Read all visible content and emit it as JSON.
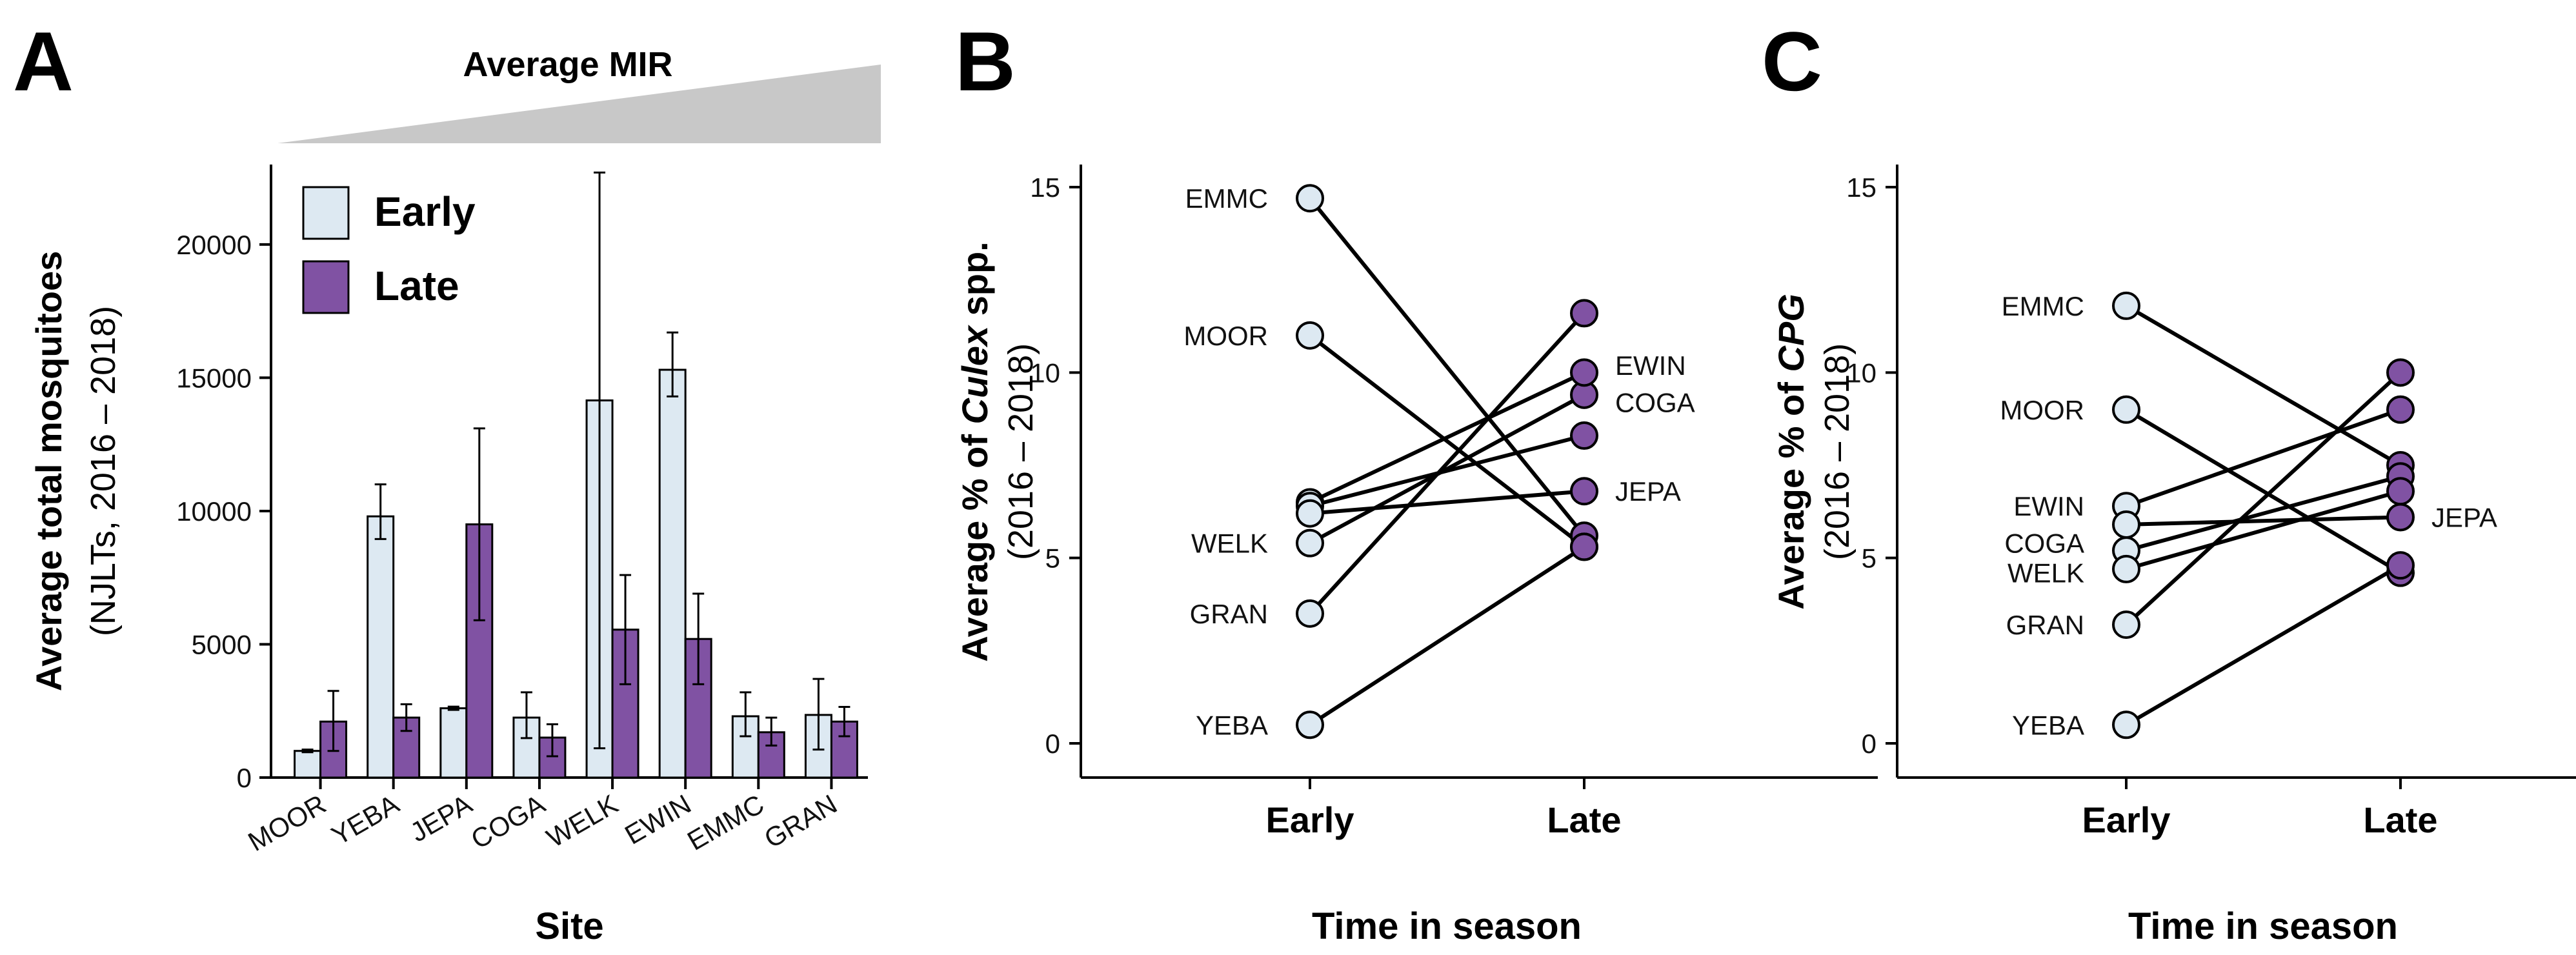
{
  "colors": {
    "early": "#dde9f2",
    "late": "#8052a3",
    "wedge": "#c8c8c8"
  },
  "chart_data": [
    {
      "panel": "A",
      "type": "bar",
      "title": "Average MIR",
      "xlabel": "Site",
      "ylabel": "Average total mosquitoes",
      "ylabel_sub": "(NJLTs, 2016 – 2018)",
      "ylim": [
        0,
        23000
      ],
      "yticks": [
        0,
        5000,
        10000,
        15000,
        20000
      ],
      "ytick_labels": [
        "0",
        "5000",
        "10000",
        "15000",
        "20000"
      ],
      "categories": [
        "MOOR",
        "YEBA",
        "JEPA",
        "COGA",
        "WELK",
        "EWIN",
        "EMMC",
        "GRAN"
      ],
      "series": [
        {
          "name": "Early",
          "values": [
            1000,
            9800,
            2600,
            2250,
            14150,
            15300,
            2300,
            2350
          ],
          "err_low": [
            950,
            8950,
            2540,
            1480,
            1100,
            14300,
            1550,
            1050
          ],
          "err_high": [
            1050,
            11000,
            2660,
            3200,
            22700,
            16700,
            3200,
            3700
          ]
        },
        {
          "name": "Late",
          "values": [
            2100,
            2250,
            9500,
            1500,
            5550,
            5200,
            1700,
            2100
          ],
          "err_low": [
            1000,
            1750,
            5900,
            800,
            3500,
            3500,
            1200,
            1550
          ],
          "err_high": [
            3250,
            2750,
            13100,
            2000,
            7600,
            6900,
            2250,
            2650
          ]
        }
      ]
    },
    {
      "panel": "B",
      "type": "line",
      "xlabel": "Time in season",
      "ylabel_pre": "Average % of ",
      "ylabel_italic": "Culex",
      "ylabel_post": " spp.",
      "ylabel_sub": "(2016 – 2018)",
      "ylim": [
        0,
        15
      ],
      "yticks": [
        0,
        5,
        10,
        15
      ],
      "ytick_labels": [
        "0",
        "5",
        "10",
        "15"
      ],
      "categories": [
        "Early",
        "Late"
      ],
      "sites": [
        {
          "name": "EMMC",
          "early": 14.7,
          "late": 5.6
        },
        {
          "name": "MOOR",
          "early": 11.0,
          "late": 5.3
        },
        {
          "name": "GRAN",
          "early": 3.5,
          "late": 11.6
        },
        {
          "name": "WELK",
          "early": 5.4,
          "late": 9.4
        },
        {
          "name": "EWIN",
          "early": 6.5,
          "late": 10.0
        },
        {
          "name": "COGA",
          "early": 6.4,
          "late": 8.3
        },
        {
          "name": "JEPA",
          "early": 6.2,
          "late": 6.8
        },
        {
          "name": "YEBA",
          "early": 0.5,
          "late": 5.3
        }
      ],
      "early_labels": [
        {
          "text": "EMMC",
          "y": 14.7
        },
        {
          "text": "MOOR",
          "y": 11.0
        },
        {
          "text": "WELK",
          "y": 5.4
        },
        {
          "text": "GRAN",
          "y": 3.5
        },
        {
          "text": "YEBA",
          "y": 0.5
        }
      ],
      "late_labels": [
        {
          "text": "EWIN",
          "y": 10.2
        },
        {
          "text": "COGA",
          "y": 9.2
        },
        {
          "text": "JEPA",
          "y": 6.8
        }
      ]
    },
    {
      "panel": "C",
      "type": "line",
      "xlabel": "Time in season",
      "ylabel_pre": "Average % of ",
      "ylabel_italic": "CPG",
      "ylabel_post": "",
      "ylabel_sub": "(2016 – 2018)",
      "ylim": [
        0,
        15
      ],
      "yticks": [
        0,
        5,
        10,
        15
      ],
      "ytick_labels": [
        "0",
        "5",
        "10",
        "15"
      ],
      "categories": [
        "Early",
        "Late"
      ],
      "sites": [
        {
          "name": "EMMC",
          "early": 11.8,
          "late": 7.5
        },
        {
          "name": "MOOR",
          "early": 9.0,
          "late": 4.6
        },
        {
          "name": "EWIN",
          "early": 6.4,
          "late": 9.0
        },
        {
          "name": "JEPA",
          "early": 5.9,
          "late": 6.1
        },
        {
          "name": "COGA",
          "early": 5.2,
          "late": 7.2
        },
        {
          "name": "WELK",
          "early": 4.7,
          "late": 6.8
        },
        {
          "name": "GRAN",
          "early": 3.2,
          "late": 10.0
        },
        {
          "name": "YEBA",
          "early": 0.5,
          "late": 4.8
        }
      ],
      "early_labels": [
        {
          "text": "EMMC",
          "y": 11.8
        },
        {
          "text": "MOOR",
          "y": 9.0
        },
        {
          "text": "EWIN",
          "y": 6.4
        },
        {
          "text": "COGA",
          "y": 5.4
        },
        {
          "text": "WELK",
          "y": 4.6
        },
        {
          "text": "GRAN",
          "y": 3.2
        },
        {
          "text": "YEBA",
          "y": 0.5
        }
      ],
      "late_labels": [
        {
          "text": "JEPA",
          "y": 6.1
        }
      ]
    }
  ]
}
